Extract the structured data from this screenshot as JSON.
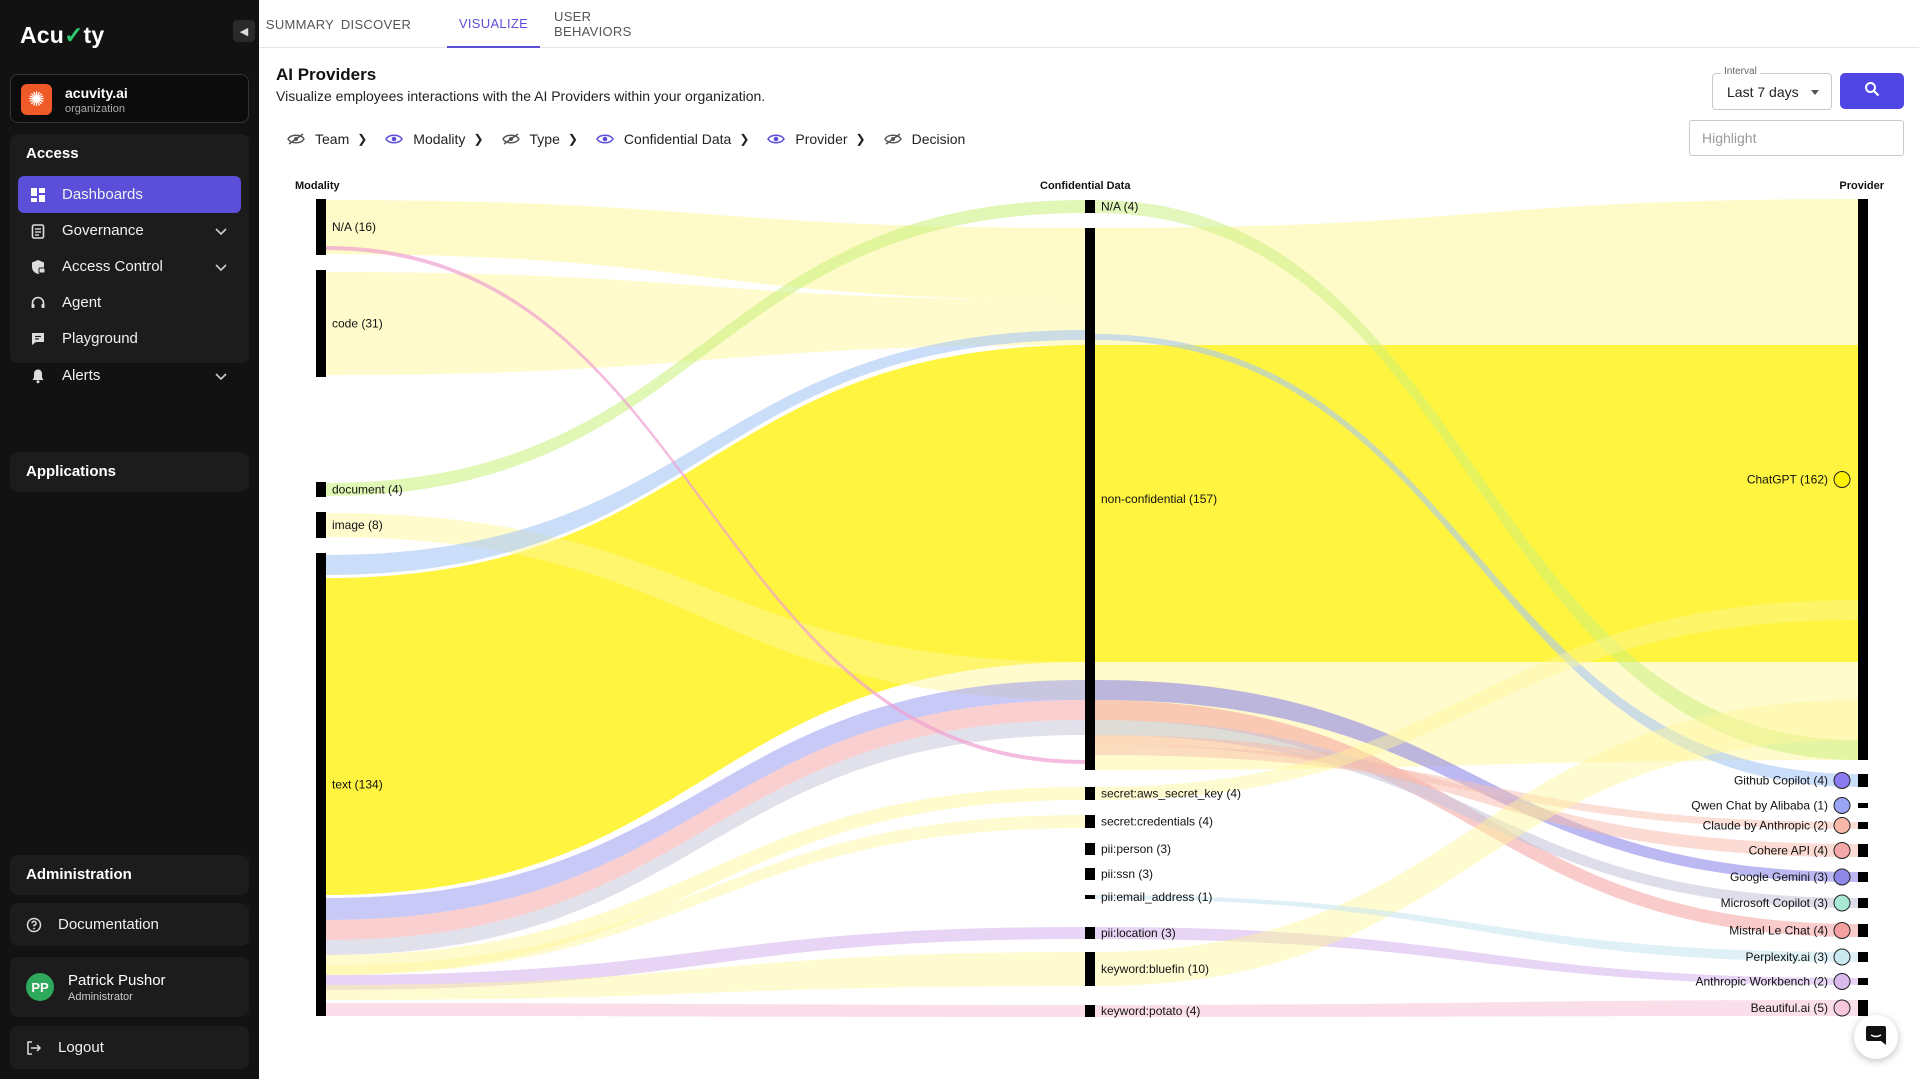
{
  "sidebar": {
    "logo_text": "Acuity",
    "org": {
      "name": "acuvity.ai",
      "type": "organization"
    },
    "access": {
      "title": "Access",
      "items": [
        {
          "label": "Dashboards",
          "icon": "dashboard-icon",
          "active": true
        },
        {
          "label": "Governance",
          "icon": "clipboard-icon",
          "expandable": true
        },
        {
          "label": "Access Control",
          "icon": "shield-lock-icon",
          "expandable": true
        },
        {
          "label": "Agent",
          "icon": "headset-icon"
        },
        {
          "label": "Playground",
          "icon": "chat-icon"
        },
        {
          "label": "Alerts",
          "icon": "bell-icon",
          "expandable": true
        }
      ]
    },
    "applications": {
      "title": "Applications"
    },
    "administration": {
      "title": "Administration"
    },
    "documentation": {
      "label": "Documentation",
      "icon": "help-circle-icon"
    },
    "user": {
      "name": "Patrick Pushor",
      "role": "Administrator",
      "initials": "PP"
    },
    "logout": {
      "label": "Logout",
      "icon": "logout-icon"
    }
  },
  "tabs": [
    {
      "label": "SUMMARY"
    },
    {
      "label": "DISCOVER"
    },
    {
      "label": "VISUALIZE",
      "active": true
    },
    {
      "label": "USER BEHAVIORS"
    }
  ],
  "header": {
    "title": "AI Providers",
    "subtitle": "Visualize employees interactions with the AI Providers within your organization."
  },
  "interval": {
    "label": "Interval",
    "value": "Last 7 days"
  },
  "highlight": {
    "placeholder": "Highlight"
  },
  "dimensions": [
    {
      "label": "Team",
      "visible": false
    },
    {
      "label": "Modality",
      "visible": true
    },
    {
      "label": "Type",
      "visible": false
    },
    {
      "label": "Confidential Data",
      "visible": true
    },
    {
      "label": "Provider",
      "visible": true
    },
    {
      "label": "Decision",
      "visible": false
    }
  ],
  "chart_data": {
    "type": "sankey",
    "columns": [
      "Modality",
      "Confidential Data",
      "Provider"
    ],
    "colors": {
      "chatgpt": "#fff200",
      "node": "#000000",
      "accent": "#5b4fd9"
    },
    "nodes": {
      "Modality": [
        {
          "name": "N/A",
          "value": 16,
          "label": "N/A (16)"
        },
        {
          "name": "code",
          "value": 31,
          "label": "code (31)"
        },
        {
          "name": "document",
          "value": 4,
          "label": "document (4)"
        },
        {
          "name": "image",
          "value": 8,
          "label": "image (8)"
        },
        {
          "name": "text",
          "value": 134,
          "label": "text (134)"
        }
      ],
      "Confidential Data": [
        {
          "name": "N/A",
          "value": 4,
          "label": "N/A (4)"
        },
        {
          "name": "non-confidential",
          "value": 157,
          "label": "non-confidential (157)"
        },
        {
          "name": "secret:aws_secret_key",
          "value": 4,
          "label": "secret:aws_secret_key (4)"
        },
        {
          "name": "secret:credentials",
          "value": 4,
          "label": "secret:credentials (4)"
        },
        {
          "name": "pii:person",
          "value": 3,
          "label": "pii:person (3)"
        },
        {
          "name": "pii:ssn",
          "value": 3,
          "label": "pii:ssn (3)"
        },
        {
          "name": "pii:email_address",
          "value": 1,
          "label": "pii:email_address (1)"
        },
        {
          "name": "pii:location",
          "value": 3,
          "label": "pii:location (3)"
        },
        {
          "name": "keyword:bluefin",
          "value": 10,
          "label": "keyword:bluefin (10)"
        },
        {
          "name": "keyword:potato",
          "value": 4,
          "label": "keyword:potato (4)"
        }
      ],
      "Provider": [
        {
          "name": "ChatGPT",
          "value": 162,
          "label": "ChatGPT (162)",
          "icon": "openai-icon",
          "color": "#fff200"
        },
        {
          "name": "Github Copilot",
          "value": 4,
          "label": "Github Copilot (4)",
          "icon": "github-copilot-icon",
          "color": "#8a7cf0"
        },
        {
          "name": "Qwen Chat by Alibaba",
          "value": 1,
          "label": "Qwen Chat by Alibaba (1)",
          "icon": "qwen-icon",
          "color": "#9aa4f5"
        },
        {
          "name": "Claude by Anthropic",
          "value": 2,
          "label": "Claude by Anthropic (2)",
          "icon": "claude-icon",
          "color": "#f7b8a8"
        },
        {
          "name": "Cohere API",
          "value": 4,
          "label": "Cohere API (4)",
          "icon": "cohere-icon",
          "color": "#f7a8a8"
        },
        {
          "name": "Google Gemini",
          "value": 3,
          "label": "Google Gemini (3)",
          "icon": "gemini-icon",
          "color": "#8f88e8"
        },
        {
          "name": "Microsoft Copilot",
          "value": 3,
          "label": "Microsoft Copilot (3)",
          "icon": "microsoft-copilot-icon",
          "color": "#a9e8d4"
        },
        {
          "name": "Mistral Le Chat",
          "value": 4,
          "label": "Mistral Le Chat (4)",
          "icon": "mistral-icon",
          "color": "#f5a0a0"
        },
        {
          "name": "Perplexity.ai",
          "value": 3,
          "label": "Perplexity.ai (3)",
          "icon": "perplexity-icon",
          "color": "#c9e8f0"
        },
        {
          "name": "Anthropic Workbench",
          "value": 2,
          "label": "Anthropic Workbench (2)",
          "icon": "anthropic-icon",
          "color": "#d9b8ec"
        },
        {
          "name": "Beautiful.ai",
          "value": 5,
          "label": "Beautiful.ai (5)",
          "icon": "beautiful-ai-icon",
          "color": "#f7c8dc"
        }
      ]
    }
  },
  "chat_widget": {
    "icon": "chat-bubble-icon"
  }
}
